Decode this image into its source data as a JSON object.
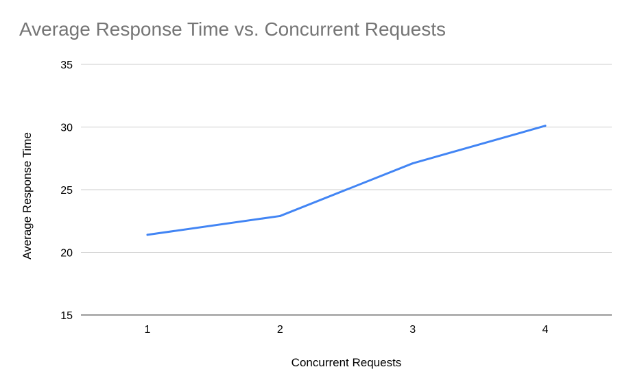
{
  "chart_data": {
    "type": "line",
    "title": "Average Response Time vs. Concurrent Requests",
    "xlabel": "Concurrent Requests",
    "ylabel": "Average Response Time",
    "categories": [
      "1",
      "2",
      "3",
      "4"
    ],
    "series": [
      {
        "values": [
          21.4,
          22.9,
          27.1,
          30.1
        ]
      }
    ],
    "ylim": [
      15,
      35
    ],
    "yticks": [
      15,
      20,
      25,
      30,
      35
    ],
    "grid": true,
    "legend": "none",
    "colors": {
      "line": "#4285f4",
      "grid": "#cccccc",
      "axis": "#333333",
      "title": "#757575",
      "text": "#000000"
    }
  }
}
